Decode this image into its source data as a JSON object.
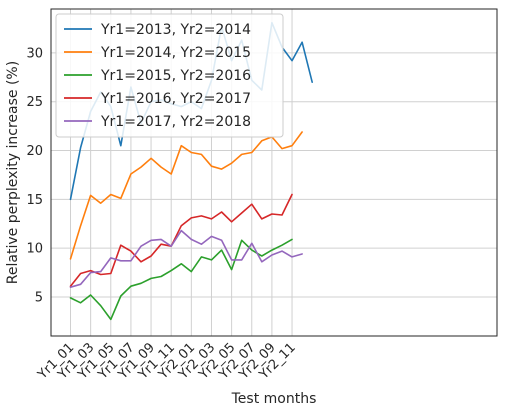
{
  "chart_data": {
    "type": "line",
    "title": "",
    "xlabel": "Test months",
    "ylabel": "Relative perplexity increase (%)",
    "ylim": [
      1,
      34.5
    ],
    "yticks": [
      5,
      10,
      15,
      20,
      25,
      30
    ],
    "x_tick_labels": [
      "Yr1_01",
      "Yr1_03",
      "Yr1_05",
      "Yr1_07",
      "Yr1_09",
      "Yr1_11",
      "Yr2_01",
      "Yr2_03",
      "Yr2_05",
      "Yr2_07",
      "Yr2_09",
      "Yr2_11"
    ],
    "grid": true,
    "legend_position": "top-left",
    "series": [
      {
        "name": "Yr1=2013, Yr2=2014",
        "color": "#1f77b4",
        "values": [
          15.0,
          20.3,
          24.0,
          26.0,
          24.5,
          20.5,
          26.5,
          22.8,
          25.0,
          25.2,
          24.8,
          24.5,
          25.0,
          24.3,
          27.2,
          32.7,
          29.2,
          31.3,
          27.2,
          26.2,
          33.1,
          30.6,
          29.2,
          31.1,
          27.0
        ]
      },
      {
        "name": "Yr1=2014, Yr2=2015",
        "color": "#ff7f0e",
        "values": [
          8.9,
          12.3,
          15.4,
          14.6,
          15.5,
          15.1,
          17.6,
          18.3,
          19.2,
          18.3,
          17.6,
          20.5,
          19.8,
          19.6,
          18.4,
          18.1,
          18.7,
          19.6,
          19.8,
          21.0,
          21.4,
          20.2,
          20.5,
          21.9
        ]
      },
      {
        "name": "Yr1=2015, Yr2=2016",
        "color": "#2ca02c",
        "values": [
          4.9,
          4.4,
          5.2,
          4.1,
          2.7,
          5.1,
          6.1,
          6.4,
          6.9,
          7.1,
          7.7,
          8.4,
          7.6,
          9.1,
          8.8,
          9.8,
          7.8,
          10.8,
          9.8,
          9.2,
          9.8,
          10.3,
          10.9
        ]
      },
      {
        "name": "Yr1=2016, Yr2=2017",
        "color": "#d62728",
        "values": [
          6.1,
          7.4,
          7.7,
          7.3,
          7.4,
          10.3,
          9.7,
          8.6,
          9.2,
          10.4,
          10.2,
          12.3,
          13.1,
          13.3,
          13.0,
          13.7,
          12.7,
          13.6,
          14.5,
          13.0,
          13.5,
          13.4,
          15.5
        ]
      },
      {
        "name": "Yr1=2017, Yr2=2018",
        "color": "#9467bd",
        "values": [
          6.0,
          6.3,
          7.5,
          7.6,
          9.0,
          8.7,
          8.7,
          10.2,
          10.8,
          10.9,
          10.2,
          11.8,
          10.9,
          10.4,
          11.2,
          10.8,
          8.8,
          8.8,
          10.5,
          8.6,
          9.3,
          9.7,
          9.1,
          9.4
        ]
      }
    ]
  }
}
